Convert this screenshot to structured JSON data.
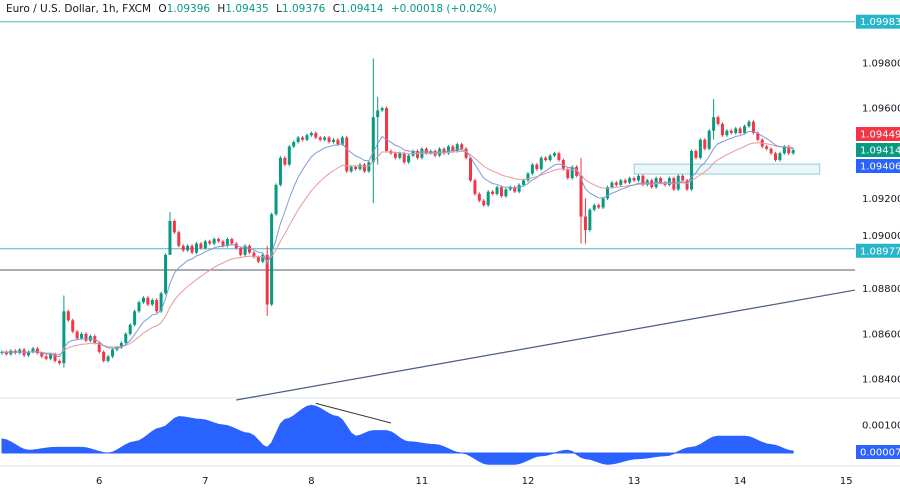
{
  "header": {
    "symbol": "Euro / U.S. Dollar, 1h, FXCM",
    "open_label": "O",
    "open": "1.09396",
    "high_label": "H",
    "high": "1.09435",
    "low_label": "L",
    "low": "1.09376",
    "close_label": "C",
    "close": "1.09414",
    "change": "+0.00018 (+0.02%)"
  },
  "colors": {
    "up": "#089981",
    "down": "#f23645",
    "ema_fast": "#7e9ad6",
    "ema_slow": "#e79a9a",
    "level_line": "#4fb6c3",
    "level_label": "#26b5c9",
    "support_line": "#555b66",
    "trend_line": "#4a5d80",
    "oscillator": "#2962ff",
    "zone_fill": "#eaf6f8",
    "zone_border": "#8fcfd8"
  },
  "chart_data": {
    "type": "candlestick",
    "interval": "1h",
    "price_axis": {
      "range": [
        1.0833,
        1.1007
      ],
      "ticks": [
        "1.09800",
        "1.09600",
        "1.09200",
        "1.09000",
        "1.08800",
        "1.08600",
        "1.08400"
      ]
    },
    "closes": [
      1.0852,
      1.0851,
      1.08525,
      1.08515,
      1.0853,
      1.08505,
      1.0852,
      1.08535,
      1.08515,
      1.085,
      1.0849,
      1.0851,
      1.0848,
      1.0847,
      1.087,
      1.0866,
      1.0861,
      1.0858,
      1.086,
      1.0857,
      1.0859,
      1.0856,
      1.0852,
      1.0848,
      1.085,
      1.0853,
      1.0854,
      1.0856,
      1.086,
      1.0864,
      1.087,
      1.0874,
      1.0876,
      1.0873,
      1.0875,
      1.087,
      1.0878,
      1.0895,
      1.091,
      1.0905,
      1.0899,
      1.0897,
      1.0899,
      1.0896,
      1.09,
      1.0898,
      1.0901,
      1.09,
      1.0902,
      1.0901,
      1.0899,
      1.0902,
      1.09,
      1.0898,
      1.0895,
      1.0899,
      1.0896,
      1.0894,
      1.0892,
      1.0895,
      1.0873,
      1.0913,
      1.0926,
      1.0938,
      1.0935,
      1.0943,
      1.0945,
      1.0947,
      1.0946,
      1.0948,
      1.0949,
      1.0947,
      1.0946,
      1.0947,
      1.0945,
      1.0946,
      1.0944,
      1.0947,
      1.0932,
      1.0934,
      1.0933,
      1.0935,
      1.0932,
      1.0936,
      1.0956,
      1.0959,
      1.096,
      1.0941,
      1.094,
      1.0938,
      1.094,
      1.0936,
      1.0939,
      1.0941,
      1.0938,
      1.0942,
      1.094,
      1.0941,
      1.0939,
      1.0942,
      1.094,
      1.0943,
      1.0941,
      1.0944,
      1.0942,
      1.0938,
      1.0928,
      1.0922,
      1.0919,
      1.0917,
      1.0923,
      1.0922,
      1.0925,
      1.0921,
      1.0924,
      1.0925,
      1.0923,
      1.0926,
      1.0928,
      1.0931,
      1.0935,
      1.0933,
      1.0938,
      1.0937,
      1.0939,
      1.094,
      1.0937,
      1.0933,
      1.0929,
      1.0934,
      1.093,
      1.0912,
      1.0906,
      1.0915,
      1.0917,
      1.0916,
      1.092,
      1.0925,
      1.0927,
      1.0926,
      1.0928,
      1.0927,
      1.0929,
      1.0928,
      1.093,
      1.0926,
      1.0928,
      1.0925,
      1.0929,
      1.0927,
      1.0926,
      1.0929,
      1.0924,
      1.093,
      1.0928,
      1.0924,
      1.0941,
      1.0938,
      1.0946,
      1.0942,
      1.095,
      1.0956,
      1.0953,
      1.0948,
      1.095,
      1.0949,
      1.0951,
      1.0949,
      1.0952,
      1.0954,
      1.0949,
      1.0946,
      1.0943,
      1.0942,
      1.094,
      1.0937,
      1.094,
      1.0943,
      1.094,
      1.09414
    ],
    "first_open": 1.08515,
    "long_wicks": [
      [
        14,
        1.0877,
        1.0845
      ],
      [
        38,
        1.0914,
        1.0902
      ],
      [
        60,
        1.0899,
        1.0868
      ],
      [
        84,
        1.0982,
        1.0918
      ],
      [
        85,
        1.0965,
        1.0935
      ],
      [
        131,
        1.0938,
        1.09
      ],
      [
        132,
        1.092,
        1.09
      ],
      [
        161,
        1.0964,
        1.0946
      ]
    ],
    "ema_periods": [
      9,
      20
    ],
    "price_labels": [
      {
        "text": "1.09983",
        "price": 1.09983,
        "color": "#26b5c9"
      },
      {
        "text": "1.09449",
        "price": 1.09449,
        "color": "#f23645"
      },
      {
        "text": "1.09414",
        "price": 1.09414,
        "color": "#089981"
      },
      {
        "text": "1.09406",
        "price": 1.09406,
        "color": "#2962ff"
      },
      {
        "text": "1.08977",
        "price": 1.08977,
        "color": "#26b5c9"
      }
    ],
    "horizontal_levels": [
      {
        "price": 1.09983,
        "kind": "resistance"
      },
      {
        "price": 1.08977,
        "kind": "support"
      },
      {
        "price": 1.08883,
        "kind": "support-dark"
      }
    ],
    "trend_line": {
      "from": [
        53,
        1.08307
      ],
      "to": [
        193,
        1.08794
      ]
    },
    "zone": {
      "bars": [
        143,
        185
      ],
      "prices": [
        1.09308,
        1.09352
      ]
    },
    "oscillator": {
      "range": [
        -0.0007,
        0.002
      ],
      "ticks": [
        "0.00100"
      ],
      "current_label": "0.00007",
      "bars": [
        0,
        6,
        12,
        18,
        24,
        30,
        36,
        40,
        45,
        50,
        56,
        60,
        64,
        70,
        76,
        80,
        84,
        87,
        92,
        98,
        104,
        110,
        116,
        122,
        128,
        132,
        137,
        144,
        150,
        156,
        162,
        168,
        174,
        179
      ],
      "values": [
        0.0005,
        0.0001,
        0.0002,
        0.0002,
        0.0,
        0.0004,
        0.0009,
        0.0013,
        0.0012,
        0.001,
        0.0007,
        0.0002,
        0.0012,
        0.0017,
        0.0013,
        0.0006,
        0.0008,
        0.0008,
        0.0004,
        0.0003,
        0.0,
        -0.0004,
        -0.0004,
        -0.0001,
        0.0001,
        -0.0002,
        -0.0004,
        -0.0002,
        -0.0001,
        0.0002,
        0.0006,
        0.0006,
        0.0003,
        7e-05
      ],
      "divergence_line": {
        "from": [
          71,
          0.0017
        ],
        "to": [
          88,
          0.001
        ]
      }
    },
    "time_axis": [
      {
        "label": "6",
        "bar": 22
      },
      {
        "label": "7",
        "bar": 46
      },
      {
        "label": "8",
        "bar": 70
      },
      {
        "label": "11",
        "bar": 95
      },
      {
        "label": "12",
        "bar": 119
      },
      {
        "label": "13",
        "bar": 143
      },
      {
        "label": "14",
        "bar": 167
      },
      {
        "label": "15",
        "bar": 191
      }
    ]
  }
}
